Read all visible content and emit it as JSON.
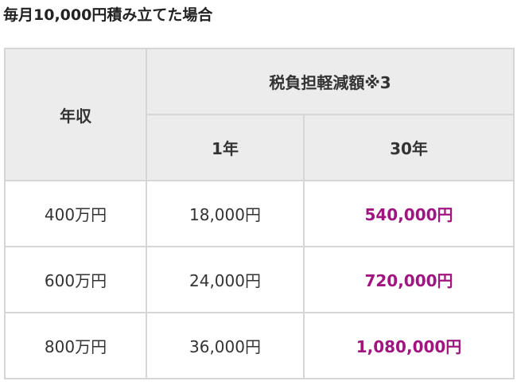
{
  "title": "毎月10,000円積み立てた場合",
  "table": {
    "header": {
      "row_label": "年収",
      "group": "税負担軽減額※3",
      "columns": [
        "1年",
        "30年"
      ]
    },
    "rows": [
      [
        "400万円",
        "18,000円",
        "540,000円"
      ],
      [
        "600万円",
        "24,000円",
        "720,000円"
      ],
      [
        "800万円",
        "36,000円",
        "1,080,000円"
      ]
    ]
  }
}
